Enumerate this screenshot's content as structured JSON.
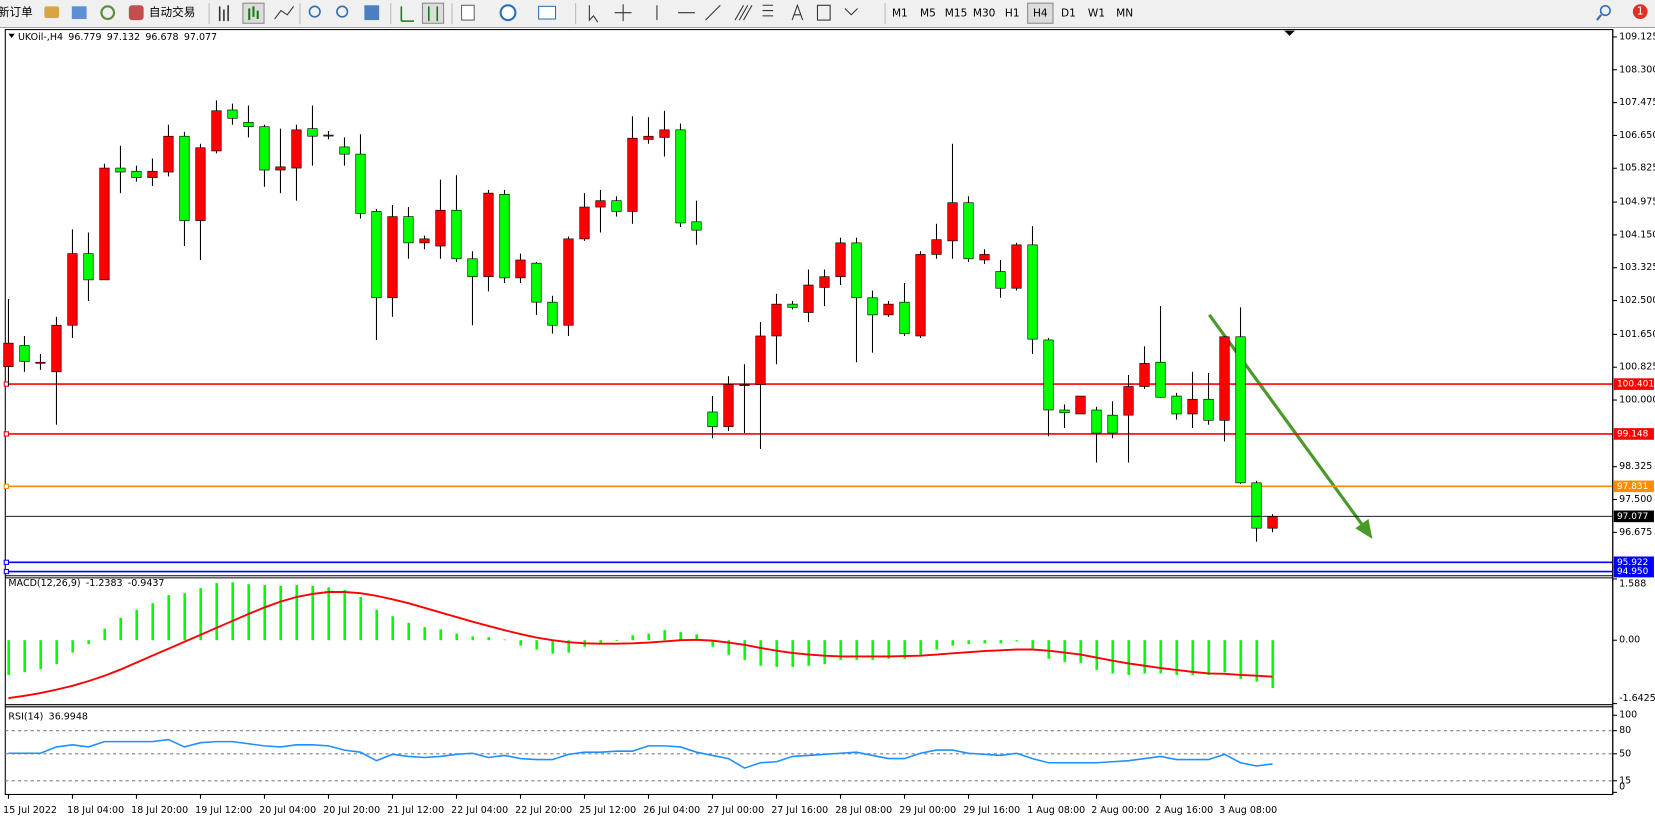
{
  "toolbar": {
    "new_order": "新订单",
    "auto_trading": "自动交易",
    "timeframes": [
      "M1",
      "M5",
      "M15",
      "M30",
      "H1",
      "H4",
      "D1",
      "W1",
      "MN"
    ],
    "active_timeframe": "H4",
    "notifications": "1"
  },
  "chart_data": [
    {
      "type": "candlestick",
      "symbol": "UKOil-,H4",
      "categories": [
        "15 Jul 2022",
        null,
        null,
        null,
        "18 Jul 04:00",
        null,
        null,
        null,
        "18 Jul 20:00",
        null,
        null,
        null,
        "19 Jul 12:00",
        null,
        null,
        null,
        "20 Jul 04:00",
        null,
        null,
        null,
        "20 Jul 20:00",
        null,
        null,
        null,
        "21 Jul 12:00",
        null,
        null,
        null,
        "22 Jul 04:00",
        null,
        null,
        null,
        "22 Jul 20:00",
        null,
        null,
        null,
        "25 Jul 12:00",
        null,
        null,
        null,
        "26 Jul 04:00",
        null,
        null,
        null,
        "27 Jul 00:00",
        null,
        null,
        null,
        "27 Jul 16:00",
        null,
        null,
        null,
        "28 Jul 08:00",
        null,
        null,
        null,
        "29 Jul 00:00",
        null,
        null,
        null,
        "29 Jul 16:00",
        null,
        null,
        null,
        "1 Aug 08:00",
        null,
        null,
        null,
        "2 Aug 00:00",
        null,
        null,
        null,
        "2 Aug 16:00",
        null,
        null,
        null,
        "3 Aug 08:00",
        null,
        null,
        null
      ],
      "open": [
        100.84,
        101.37,
        100.95,
        100.71,
        101.88,
        103.68,
        103.02,
        105.83,
        105.75,
        105.59,
        105.73,
        106.63,
        104.51,
        106.26,
        107.29,
        106.98,
        106.87,
        105.78,
        105.83,
        106.82,
        106.66,
        106.36,
        106.18,
        104.74,
        102.57,
        104.61,
        103.95,
        103.87,
        104.77,
        103.55,
        103.1,
        105.17,
        103.07,
        103.44,
        102.46,
        101.88,
        104.05,
        104.85,
        105.01,
        104.74,
        106.55,
        106.6,
        106.79,
        104.48,
        99.7,
        99.33,
        100.39,
        100.39,
        101.61,
        102.41,
        102.2,
        102.83,
        103.1,
        103.95,
        102.57,
        102.14,
        102.46,
        101.61,
        103.66,
        104.0,
        104.96,
        103.52,
        103.23,
        102.81,
        103.9,
        101.51,
        99.75,
        99.65,
        99.75,
        99.62,
        99.62,
        100.34,
        100.95,
        100.1,
        99.65,
        100.02,
        99.49,
        101.59,
        97.92,
        96.779
      ],
      "high": [
        102.54,
        101.61,
        101.16,
        102.09,
        104.29,
        104.21,
        105.94,
        106.39,
        105.89,
        106.07,
        106.92,
        106.74,
        106.44,
        107.53,
        107.45,
        107.4,
        106.92,
        106.82,
        106.92,
        107.4,
        106.76,
        106.6,
        106.68,
        104.8,
        104.9,
        104.85,
        104.13,
        105.54,
        105.65,
        103.74,
        105.28,
        105.28,
        103.68,
        103.47,
        102.62,
        104.11,
        105.2,
        105.28,
        105.12,
        107.13,
        107.11,
        107.27,
        106.95,
        105.01,
        100.1,
        100.6,
        100.9,
        101.96,
        102.67,
        102.49,
        103.28,
        103.28,
        104.08,
        104.08,
        102.75,
        102.49,
        102.94,
        103.74,
        104.43,
        106.44,
        105.12,
        103.79,
        103.52,
        103.95,
        104.37,
        101.56,
        99.89,
        100.1,
        99.83,
        99.97,
        100.63,
        101.35,
        102.36,
        100.18,
        100.71,
        100.68,
        101.61,
        102.33,
        97.97,
        97.132
      ],
      "low": [
        100.36,
        100.71,
        100.76,
        99.38,
        101.56,
        102.49,
        103.02,
        105.2,
        105.49,
        105.38,
        105.62,
        103.87,
        103.52,
        106.2,
        106.92,
        106.6,
        105.36,
        105.2,
        105.01,
        105.89,
        106.55,
        105.89,
        104.56,
        101.51,
        102.09,
        103.55,
        103.79,
        103.55,
        103.47,
        101.88,
        102.73,
        102.94,
        102.94,
        102.14,
        101.67,
        101.61,
        104.0,
        104.21,
        104.61,
        104.43,
        106.44,
        106.12,
        104.35,
        103.9,
        99.04,
        99.22,
        99.17,
        98.77,
        100.9,
        102.28,
        101.96,
        102.36,
        102.89,
        100.95,
        101.19,
        102.09,
        101.61,
        101.56,
        103.55,
        103.55,
        103.47,
        103.42,
        102.57,
        102.75,
        101.16,
        99.09,
        99.3,
        99.65,
        98.43,
        99.04,
        98.43,
        100.28,
        100.05,
        99.51,
        99.3,
        99.38,
        98.96,
        97.89,
        96.44,
        96.678
      ],
      "close": [
        101.43,
        100.97,
        100.95,
        101.88,
        103.68,
        103.02,
        105.83,
        105.73,
        105.59,
        105.75,
        106.63,
        104.51,
        106.34,
        107.27,
        107.08,
        106.87,
        105.78,
        105.86,
        106.79,
        106.63,
        106.66,
        106.18,
        104.69,
        102.57,
        104.61,
        103.95,
        104.05,
        104.77,
        103.55,
        103.1,
        105.2,
        103.07,
        103.52,
        102.46,
        101.88,
        104.05,
        104.85,
        105.01,
        104.74,
        106.58,
        106.63,
        106.79,
        104.45,
        104.27,
        99.33,
        100.39,
        100.39,
        101.61,
        102.41,
        102.33,
        102.89,
        103.1,
        103.95,
        102.57,
        102.14,
        102.41,
        101.67,
        103.66,
        104.03,
        104.96,
        103.55,
        103.66,
        102.81,
        103.9,
        101.53,
        99.75,
        99.68,
        100.1,
        99.17,
        99.17,
        100.34,
        100.92,
        100.07,
        99.65,
        100.02,
        99.49,
        101.59,
        97.92,
        96.78,
        97.077
      ],
      "up_color": "#ff0000",
      "down_color": "#00ff00",
      "ylim": [
        95.61,
        109.31
      ],
      "yticks": [
        109.125,
        {
          "value": 108.3,
          "label": "108.300"
        },
        107.475,
        {
          "value": 106.65,
          "label": "106.650"
        },
        105.825,
        104.975,
        {
          "value": 104.15,
          "label": "104.150"
        },
        103.325,
        {
          "value": 102.5,
          "label": "102.500"
        },
        {
          "value": 101.65,
          "label": "101.650"
        },
        100.825,
        {
          "value": 100,
          "label": "100.000"
        },
        98.325,
        {
          "value": 97.5,
          "label": "97.500"
        },
        96.675
      ],
      "grid": false,
      "hlines": [
        {
          "value": 100.401,
          "color": "#ff0000"
        },
        {
          "value": 99.148,
          "color": "#ff0000"
        },
        {
          "value": 97.831,
          "color": "#ff8c00"
        },
        {
          "value": 95.922,
          "color": "#0000ff"
        },
        {
          "value": 94.95,
          "label": "94.950",
          "color": "#0000ff"
        }
      ]
    },
    {
      "type": "macd",
      "title": "MACD(12,26,9)",
      "values": [
        -0.9,
        -0.83,
        -0.75,
        -0.62,
        -0.32,
        -0.1,
        0.3,
        0.58,
        0.79,
        0.96,
        1.17,
        1.22,
        1.35,
        1.48,
        1.5,
        1.45,
        1.43,
        1.41,
        1.43,
        1.41,
        1.37,
        1.3,
        1.12,
        0.79,
        0.62,
        0.45,
        0.34,
        0.28,
        0.17,
        0.1,
        0.08,
        0.02,
        -0.14,
        -0.24,
        -0.35,
        -0.32,
        -0.17,
        -0.1,
        -0.02,
        0.13,
        0.17,
        0.26,
        0.21,
        0.15,
        -0.17,
        -0.38,
        -0.51,
        -0.66,
        -0.69,
        -0.69,
        -0.66,
        -0.62,
        -0.51,
        -0.51,
        -0.51,
        -0.48,
        -0.48,
        -0.38,
        -0.24,
        -0.14,
        -0.1,
        -0.08,
        -0.08,
        -0.03,
        -0.21,
        -0.48,
        -0.56,
        -0.59,
        -0.77,
        -0.86,
        -0.9,
        -0.86,
        -0.86,
        -0.9,
        -0.9,
        -0.9,
        -0.83,
        -1.0,
        -1.07,
        -1.2383
      ],
      "signal": [
        -1.5,
        -1.44,
        -1.37,
        -1.28,
        -1.18,
        -1.06,
        -0.92,
        -0.76,
        -0.58,
        -0.4,
        -0.22,
        -0.04,
        0.14,
        0.32,
        0.5,
        0.68,
        0.85,
        1.0,
        1.12,
        1.2,
        1.25,
        1.25,
        1.22,
        1.15,
        1.06,
        0.96,
        0.84,
        0.72,
        0.6,
        0.48,
        0.37,
        0.26,
        0.16,
        0.07,
        0.0,
        -0.05,
        -0.08,
        -0.09,
        -0.09,
        -0.08,
        -0.06,
        -0.03,
        0.0,
        0.01,
        -0.01,
        -0.06,
        -0.12,
        -0.2,
        -0.27,
        -0.33,
        -0.37,
        -0.4,
        -0.42,
        -0.42,
        -0.42,
        -0.42,
        -0.41,
        -0.4,
        -0.37,
        -0.34,
        -0.31,
        -0.28,
        -0.26,
        -0.24,
        -0.24,
        -0.27,
        -0.32,
        -0.37,
        -0.45,
        -0.53,
        -0.6,
        -0.66,
        -0.72,
        -0.77,
        -0.82,
        -0.86,
        -0.87,
        -0.9,
        -0.92,
        -0.9437
      ],
      "color": "#00ff00",
      "signal_color": "#ff0000",
      "ylim": [
        -1.6425,
        1.588
      ],
      "yticks": [
        1.588,
        {
          "value": 0,
          "label": "0.00"
        },
        -1.6425
      ]
    },
    {
      "type": "rsi",
      "title": "RSI(14)",
      "values": [
        50.7,
        50.7,
        50.7,
        58.9,
        61.6,
        58.9,
        65.8,
        65.8,
        65.8,
        65.8,
        68.5,
        58.9,
        64.4,
        65.8,
        65.8,
        63.0,
        60.3,
        58.9,
        61.6,
        61.6,
        60.3,
        54.8,
        52.1,
        41.1,
        49.3,
        46.6,
        45.2,
        46.6,
        49.3,
        50.7,
        45.2,
        47.9,
        43.8,
        42.5,
        42.5,
        49.3,
        52.1,
        52.1,
        53.4,
        53.4,
        60.3,
        60.3,
        58.9,
        52.1,
        47.9,
        43.8,
        31.5,
        38.4,
        39.7,
        46.6,
        47.9,
        49.3,
        50.7,
        52.1,
        47.9,
        43.8,
        43.8,
        50.7,
        54.8,
        54.8,
        50.7,
        49.3,
        47.9,
        50.7,
        43.8,
        38.4,
        38.4,
        38.4,
        38.4,
        39.7,
        41.1,
        43.8,
        46.6,
        42.5,
        42.5,
        42.5,
        49.3,
        38.4,
        34.2,
        36.9948
      ],
      "color": "#1e90ff",
      "ylim": [
        0,
        100
      ],
      "yticks": [
        100,
        80,
        50,
        15,
        0
      ]
    }
  ]
}
